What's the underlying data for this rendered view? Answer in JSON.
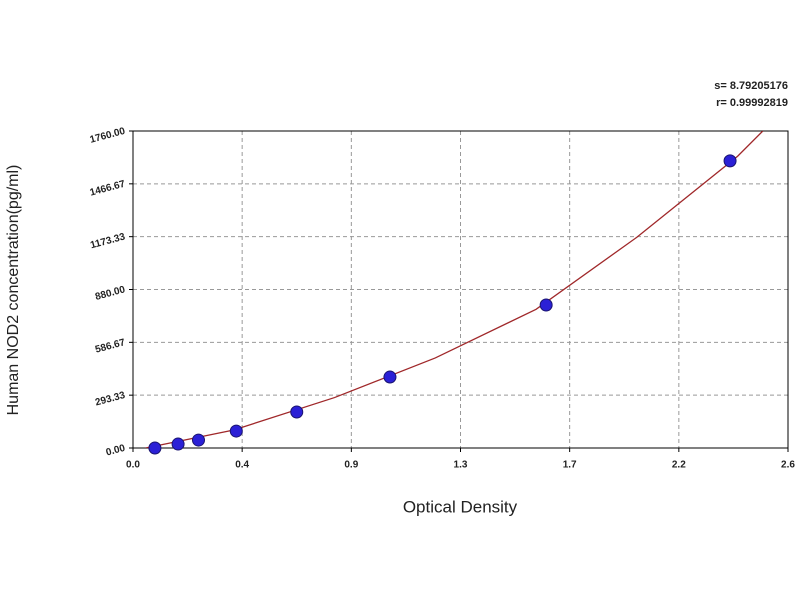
{
  "chart_data": {
    "type": "scatter",
    "annotations": [
      "s= 8.79205176",
      "r= 0.99992819"
    ],
    "xlabel": "Optical Density",
    "ylabel": "Human NOD2 concentration(pg/ml)",
    "series": [
      {
        "color": "#2b20d6",
        "x": [
          0.087,
          0.179,
          0.26,
          0.41,
          0.65,
          1.02,
          1.64,
          2.37
        ],
        "values": [
          0,
          22,
          44,
          94,
          200,
          394,
          794,
          1594
        ]
      }
    ],
    "curve": {
      "color": "#a0282a",
      "x": [
        0.05,
        0.4,
        0.8,
        1.2,
        1.6,
        2.0,
        2.4,
        2.5
      ],
      "values": [
        0,
        100,
        280,
        500,
        770,
        1170,
        1620,
        1760
      ]
    },
    "xlim": [
      0,
      2.6
    ],
    "ylim": [
      0,
      1760
    ],
    "xticks": [
      {
        "value": 0,
        "label": "0.0"
      },
      {
        "value": 0.4333,
        "label": "0.4"
      },
      {
        "value": 0.8667,
        "label": "0.9"
      },
      1.3,
      {
        "value": 1.7333,
        "label": "1.7"
      },
      {
        "value": 2.1667,
        "label": "2.2"
      },
      2.6
    ],
    "yticks": [
      {
        "value": 0,
        "label": "0.00"
      },
      {
        "value": 293.333,
        "label": "293.33"
      },
      {
        "value": 586.667,
        "label": "586.67"
      },
      {
        "value": 880,
        "label": "880.00"
      },
      {
        "value": 1173.333,
        "label": "1173.33"
      },
      {
        "value": 1466.667,
        "label": "1466.67"
      },
      {
        "value": 1760,
        "label": "1760.00"
      }
    ],
    "grid": true
  }
}
